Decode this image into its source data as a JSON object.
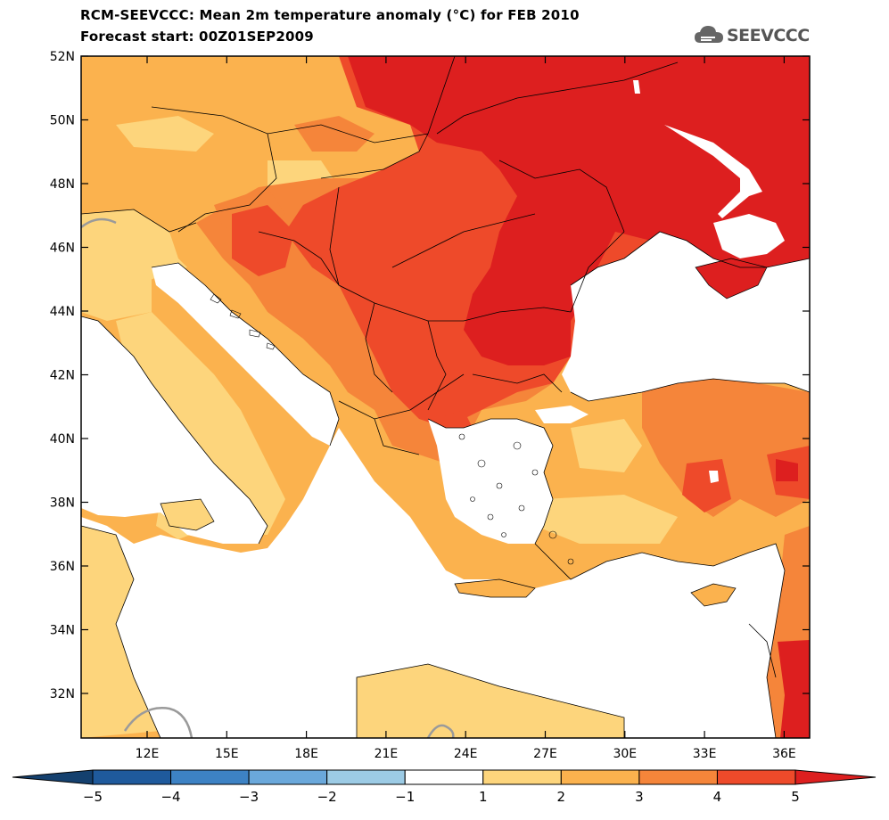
{
  "header": {
    "title_line1": "RCM-SEEVCCC: Mean 2m temperature anomaly (°C) for FEB 2010",
    "title_line2": "Forecast start: 00Z01SEP2009",
    "logo_text": "SEEVCCC",
    "logo_icon": "cloud-icon"
  },
  "axes": {
    "lat_labels": [
      "52N",
      "50N",
      "48N",
      "46N",
      "44N",
      "42N",
      "40N",
      "38N",
      "36N",
      "34N",
      "32N"
    ],
    "lon_labels": [
      "12E",
      "15E",
      "18E",
      "21E",
      "24E",
      "27E",
      "30E",
      "33E",
      "36E"
    ]
  },
  "colorbar": {
    "labels": [
      "−5",
      "−4",
      "−3",
      "−2",
      "−1",
      "1",
      "2",
      "3",
      "4",
      "5"
    ],
    "colors": [
      "#1f5a9c",
      "#3d82c4",
      "#6aa8db",
      "#9ccbe5",
      "#ffffff",
      "#fdd57c",
      "#fbb24e",
      "#f5853a",
      "#ee4a2a"
    ],
    "under_color": "#14406e",
    "over_color": "#dd1f1f"
  },
  "palette": {
    "sea": "#ffffff",
    "anomaly_1_2": "#fdd57c",
    "anomaly_2_3": "#fbb24e",
    "anomaly_3_4": "#f5853a",
    "anomaly_4_5": "#ee4a2a",
    "anomaly_gt5": "#dd1f1f"
  }
}
